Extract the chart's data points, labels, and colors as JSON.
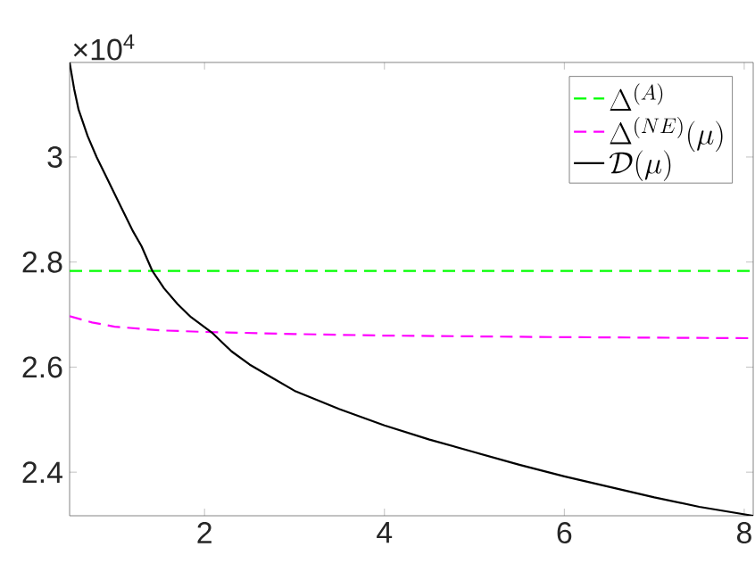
{
  "chart_data": {
    "type": "line",
    "legend": "top right",
    "xlim": [
      0.5,
      8.1
    ],
    "ylim": [
      2.317,
      3.18
    ],
    "xticks": [
      2,
      4,
      6,
      8
    ],
    "yticks": [
      2.4,
      2.6,
      2.8,
      3
    ],
    "annotations": [
      "×10$^{4}$"
    ],
    "series": [
      {
        "name": "\\Delta^{(A)}",
        "color": "#00ff00",
        "line_style": "dashed",
        "x": [
          0.5,
          8.1
        ],
        "values": [
          2.783,
          2.783
        ]
      },
      {
        "name": "\\Delta^{(NE)}(\\mu)",
        "color": "#ff00ff",
        "line_style": "dashed",
        "x": [
          0.5,
          0.75,
          1,
          1.5,
          2,
          3,
          4,
          6,
          8.1
        ],
        "values": [
          2.697,
          2.685,
          2.677,
          2.67,
          2.667,
          2.663,
          2.66,
          2.657,
          2.655
        ]
      },
      {
        "name": "\\mathcal{D}(\\mu)",
        "color": "#000000",
        "line_style": "solid",
        "x": [
          0.5,
          0.55,
          0.6,
          0.7,
          0.8,
          0.9,
          1,
          1.1,
          1.2,
          1.3,
          1.42,
          1.55,
          1.7,
          1.85,
          2.08,
          2.3,
          2.5,
          2.75,
          3,
          3.5,
          4,
          4.5,
          5,
          5.5,
          6,
          6.5,
          7,
          7.5,
          8.1
        ],
        "values": [
          3.18,
          3.13,
          3.09,
          3.04,
          3.0,
          2.965,
          2.93,
          2.895,
          2.86,
          2.83,
          2.783,
          2.75,
          2.72,
          2.695,
          2.666,
          2.63,
          2.605,
          2.58,
          2.555,
          2.52,
          2.489,
          2.462,
          2.438,
          2.414,
          2.392,
          2.372,
          2.352,
          2.334,
          2.317
        ]
      }
    ]
  }
}
